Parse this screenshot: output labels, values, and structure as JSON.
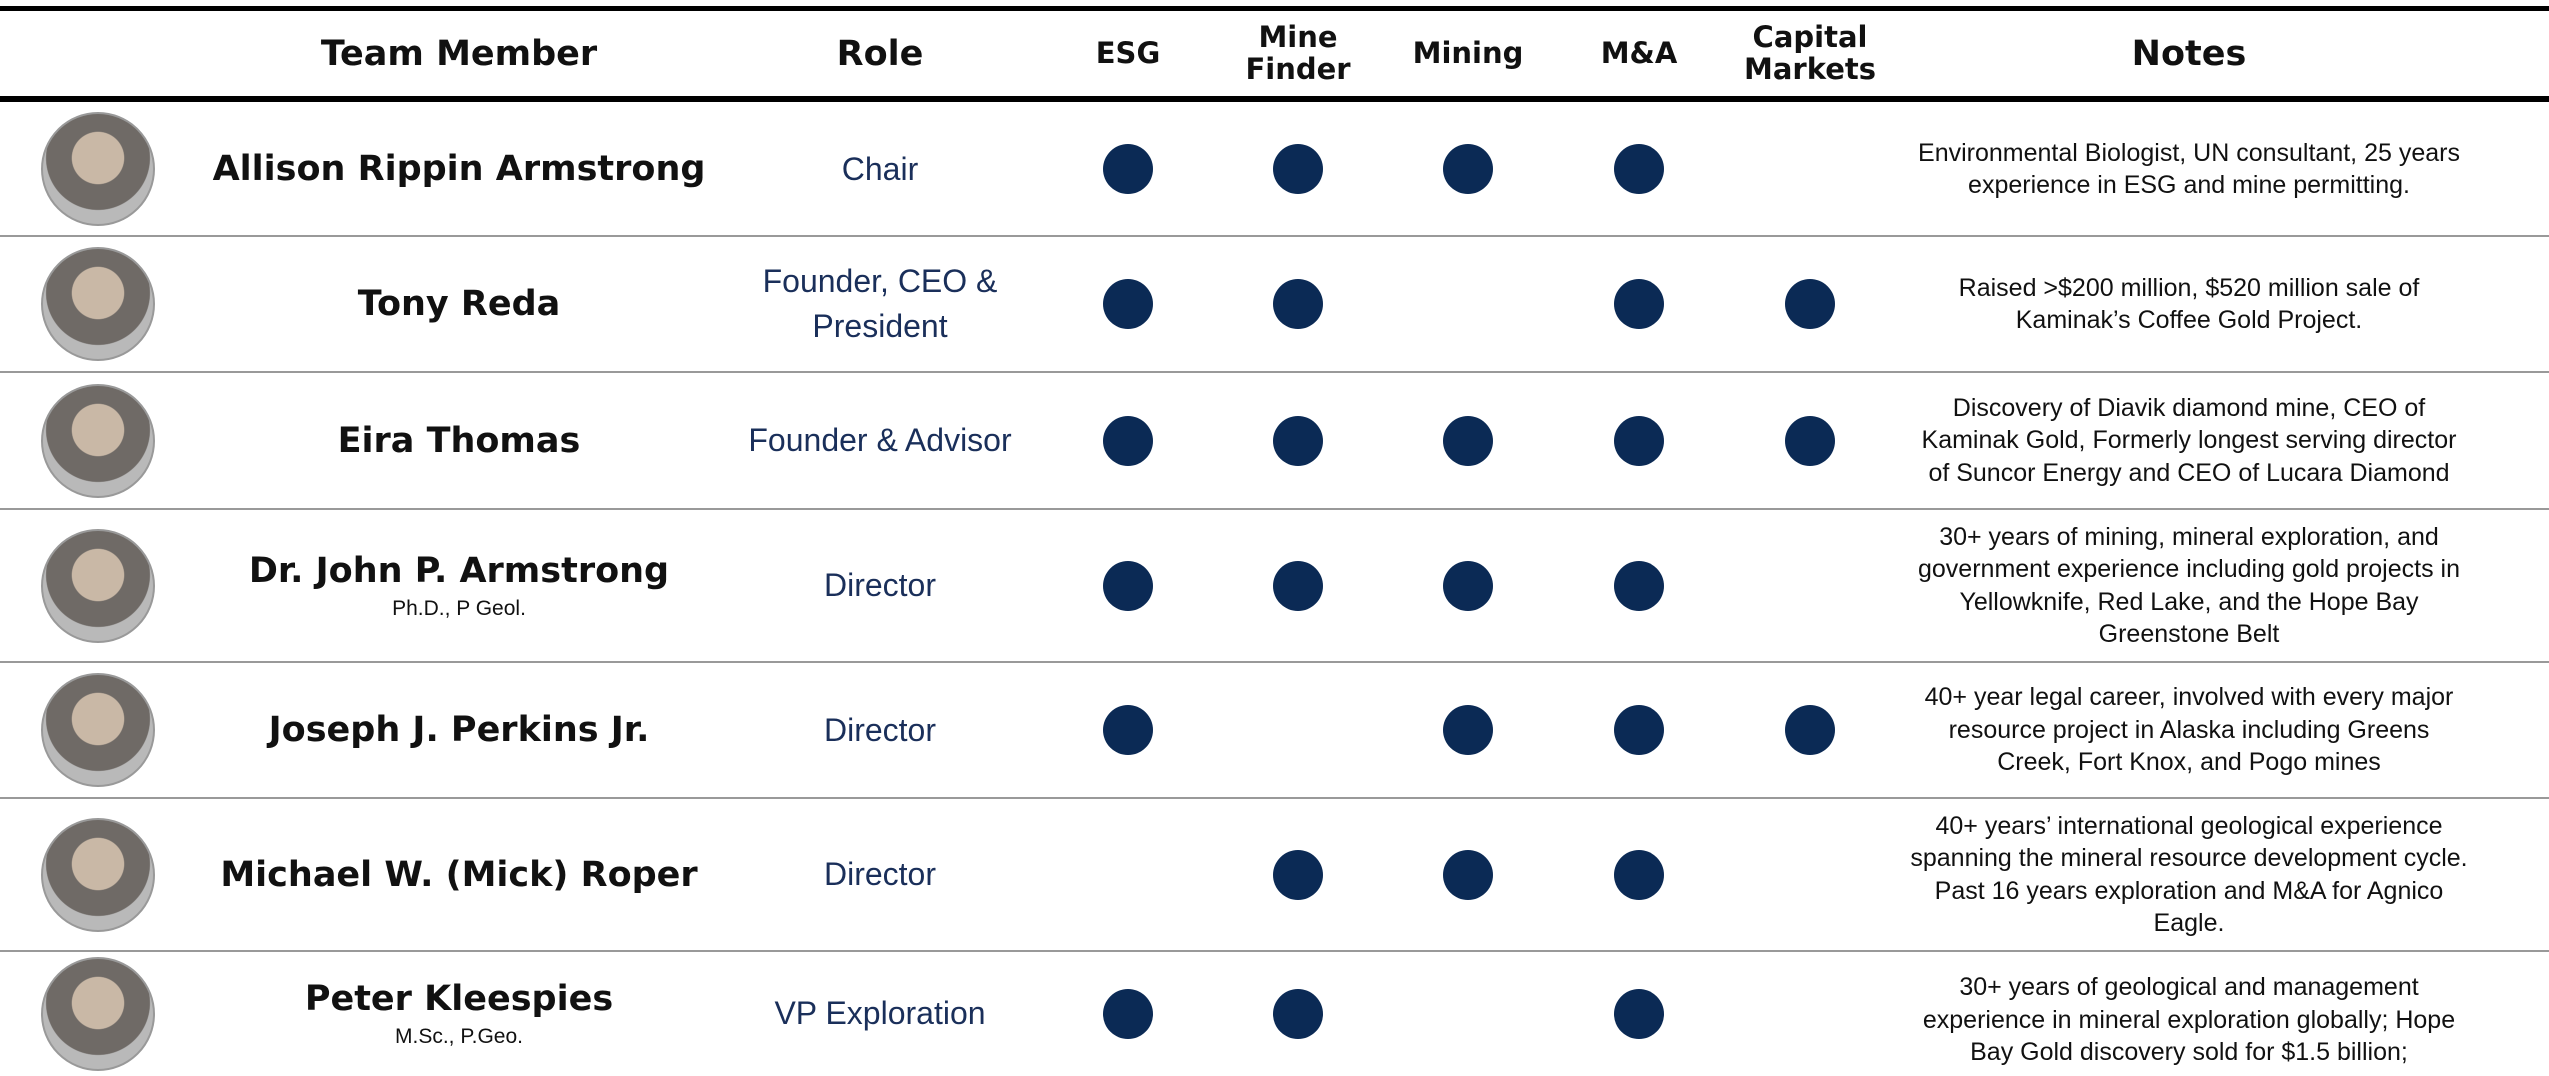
{
  "header": {
    "columns": [
      "Team Member",
      "Role",
      "ESG",
      "Mine Finder",
      "Mining",
      "M&A",
      "Capital Markets",
      "Notes"
    ]
  },
  "rows": [
    {
      "name": "Allison Rippin Armstrong",
      "role": "Chair",
      "skills": [
        true,
        true,
        true,
        true,
        false
      ],
      "notes": "Environmental Biologist, UN consultant, 25 years experience in ESG and mine permitting."
    },
    {
      "name": "Tony Reda",
      "role": "Founder, CEO & President",
      "skills": [
        true,
        true,
        false,
        true,
        true
      ],
      "notes": "Raised >$200 million, $520 million sale of Kaminak’s Coffee Gold Project."
    },
    {
      "name": "Eira Thomas",
      "role": "Founder & Advisor",
      "skills": [
        true,
        true,
        true,
        true,
        true
      ],
      "notes": "Discovery of Diavik diamond mine, CEO of Kaminak Gold, Formerly longest serving director of Suncor Energy and CEO of Lucara Diamond"
    },
    {
      "name": "Dr. John P. Armstrong",
      "credentials": "Ph.D., P Geol.",
      "role": "Director",
      "skills": [
        true,
        true,
        true,
        true,
        false
      ],
      "notes": "30+ years of mining, mineral exploration, and government experience including gold projects in Yellowknife, Red Lake, and the Hope Bay Greenstone Belt"
    },
    {
      "name": "Joseph J. Perkins Jr.",
      "role": "Director",
      "skills": [
        true,
        false,
        true,
        true,
        true
      ],
      "notes": "40+ year legal career, involved with every major resource project in Alaska including Greens Creek, Fort Knox, and Pogo mines"
    },
    {
      "name": "Michael W. (Mick) Roper",
      "role": "Director",
      "skills": [
        false,
        true,
        true,
        true,
        false
      ],
      "notes": "40+ years’ international geological experience spanning the mineral resource development cycle. Past 16 years exploration and M&A for Agnico Eagle."
    },
    {
      "name": "Peter Kleespies",
      "credentials": "M.Sc., P.Geo.",
      "role": "VP Exploration",
      "skills": [
        true,
        true,
        false,
        true,
        false
      ],
      "notes": "30+ years of geological and management experience in mineral exploration globally; Hope Bay Gold discovery sold for $1.5 billion;"
    }
  ]
}
